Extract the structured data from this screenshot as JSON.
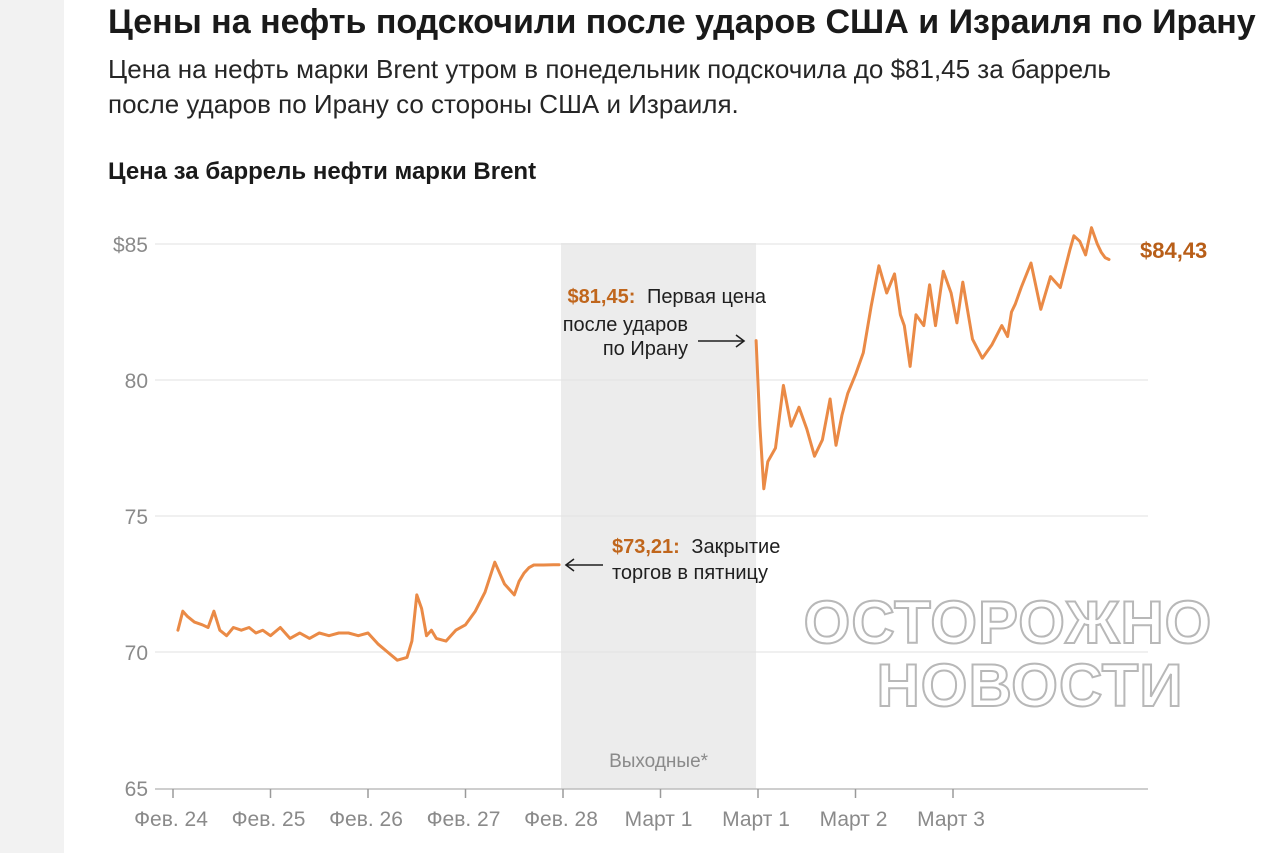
{
  "header": {
    "headline": "Цены на нефть подскочили после ударов США и Израиля по Ирану",
    "subhead": "Цена на нефть марки Brent утром в понедельник подскочила до $81,45 за баррель после ударов по Ирану со стороны США и Израиля."
  },
  "watermark": {
    "line1": "ОСТОРОЖНО",
    "line2": "НОВОСТИ"
  },
  "colors": {
    "line": "#ea8a46",
    "accent_text": "#c0661c",
    "weekend_band": "#ececec",
    "grid": "#e2e2e2"
  },
  "chart_data": {
    "type": "line",
    "title": "Цена за баррель нефти марки Brent",
    "xlabel": "",
    "ylabel": "",
    "ylim": [
      65,
      86
    ],
    "y_ticks": [
      {
        "value": 85,
        "label": "$85"
      },
      {
        "value": 80,
        "label": "80"
      },
      {
        "value": 75,
        "label": "75"
      },
      {
        "value": 70,
        "label": "70"
      },
      {
        "value": 65,
        "label": "65"
      }
    ],
    "x_ticks": [
      {
        "pos": 0,
        "label": "Фев. 24"
      },
      {
        "pos": 1,
        "label": "Фев. 25"
      },
      {
        "pos": 2,
        "label": "Фев. 26"
      },
      {
        "pos": 3,
        "label": "Фев. 27"
      },
      {
        "pos": 4,
        "label": "Фев. 28"
      },
      {
        "pos": 5,
        "label": "Март 1"
      },
      {
        "pos": 6,
        "label": "Март 1"
      },
      {
        "pos": 7,
        "label": "Март 2"
      },
      {
        "pos": 8,
        "label": "Март 3"
      }
    ],
    "weekend_band": {
      "from": 3.98,
      "to": 5.98,
      "label": "Выходные*"
    },
    "series": [
      {
        "segment": "before",
        "x": [
          0.05,
          0.1,
          0.15,
          0.22,
          0.3,
          0.36,
          0.42,
          0.48,
          0.55,
          0.62,
          0.7,
          0.78,
          0.85,
          0.92,
          1.0,
          1.1,
          1.2,
          1.3,
          1.4,
          1.5,
          1.6,
          1.7,
          1.8,
          1.9,
          2.0,
          2.1,
          2.2,
          2.3,
          2.4,
          2.45,
          2.5,
          2.55,
          2.6,
          2.65,
          2.7,
          2.8,
          2.9,
          3.0,
          3.1,
          3.2,
          3.3,
          3.4,
          3.5,
          3.55,
          3.6,
          3.65,
          3.7,
          3.8,
          3.9,
          3.96
        ],
        "y": [
          70.8,
          71.5,
          71.3,
          71.1,
          71.0,
          70.9,
          71.5,
          70.8,
          70.6,
          70.9,
          70.8,
          70.9,
          70.7,
          70.8,
          70.6,
          70.9,
          70.5,
          70.7,
          70.5,
          70.7,
          70.6,
          70.7,
          70.7,
          70.6,
          70.7,
          70.3,
          70.0,
          69.7,
          69.8,
          70.4,
          72.1,
          71.6,
          70.6,
          70.8,
          70.5,
          70.4,
          70.8,
          71.0,
          71.5,
          72.2,
          73.3,
          72.5,
          72.1,
          72.6,
          72.9,
          73.1,
          73.2,
          73.2,
          73.21,
          73.21
        ]
      },
      {
        "segment": "after",
        "x": [
          5.98,
          6.02,
          6.06,
          6.1,
          6.18,
          6.26,
          6.34,
          6.42,
          6.5,
          6.58,
          6.66,
          6.74,
          6.8,
          6.86,
          6.92,
          7.0,
          7.08,
          7.16,
          7.24,
          7.32,
          7.4,
          7.46,
          7.5,
          7.56,
          7.62,
          7.7,
          7.76,
          7.82,
          7.9,
          7.98,
          8.04,
          8.1,
          8.2,
          8.3,
          8.4,
          8.5,
          8.56,
          8.6,
          8.64,
          8.7,
          8.8,
          8.9,
          9.0,
          9.1,
          9.2,
          9.24,
          9.3,
          9.36,
          9.42,
          9.48,
          9.52,
          9.56,
          9.6
        ],
        "y": [
          81.45,
          78.3,
          76.0,
          77.0,
          77.5,
          79.8,
          78.3,
          79.0,
          78.2,
          77.2,
          77.8,
          79.3,
          77.6,
          78.7,
          79.5,
          80.2,
          81.0,
          82.7,
          84.2,
          83.2,
          83.9,
          82.4,
          82.0,
          80.5,
          82.4,
          82.0,
          83.5,
          82.0,
          84.0,
          83.2,
          82.1,
          83.6,
          81.5,
          80.8,
          81.3,
          82.0,
          81.6,
          82.5,
          82.8,
          83.4,
          84.3,
          82.6,
          83.8,
          83.4,
          84.8,
          85.3,
          85.1,
          84.6,
          85.6,
          85.0,
          84.7,
          84.5,
          84.43
        ]
      }
    ],
    "annotations": [
      {
        "value_text": "$81,45:",
        "text": "Первая цена после ударов по Ирану"
      },
      {
        "value_text": "$73,21:",
        "text": "Закрытие торгов в пятницу"
      }
    ],
    "end_label": "$84,43",
    "grid": true,
    "legend": "none"
  }
}
